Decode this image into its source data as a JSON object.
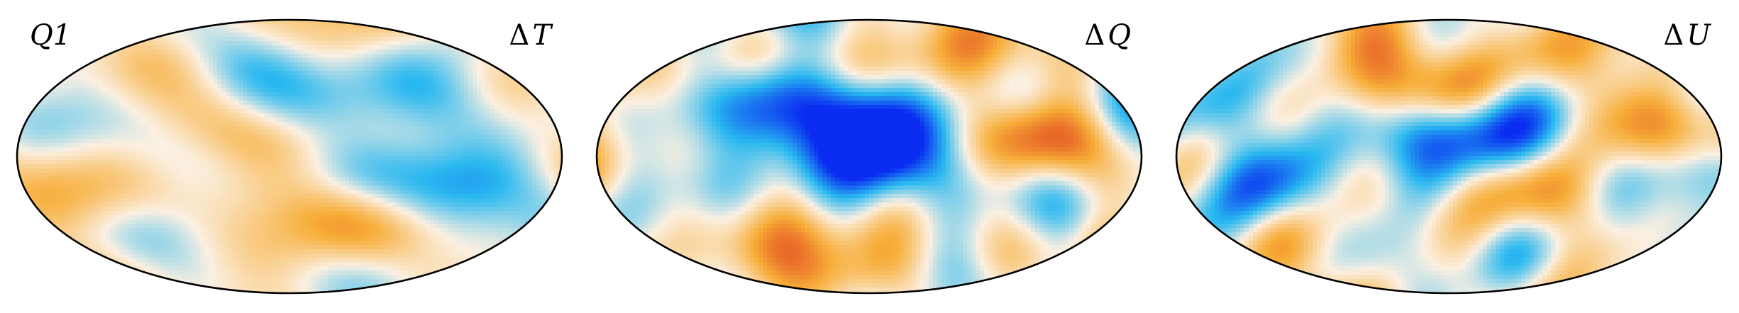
{
  "figure": {
    "projection": "Mollweide",
    "colormap": {
      "negative_strong": "#0a2cf0",
      "negative_mid": "#29b8f0",
      "neutral": "#fbf0e2",
      "positive_mid": "#f7ad38",
      "positive_strong": "#e0431f"
    },
    "outline_color": "#000000",
    "background": "#ffffff"
  },
  "panels": [
    {
      "id": "dT",
      "left_label": "Q1",
      "right_label_delta": "Δ",
      "right_label_symbol": "T",
      "field": {
        "seed": 11,
        "amplitude": 0.5,
        "features": [
          {
            "lon": -60,
            "lat": 20,
            "sign": 1,
            "strength": 0.5
          },
          {
            "lon": 20,
            "lat": 35,
            "sign": -1,
            "strength": 0.55
          },
          {
            "lon": 120,
            "lat": -20,
            "sign": -1,
            "strength": 0.6
          },
          {
            "lon": -110,
            "lat": -30,
            "sign": 1,
            "strength": 0.35
          },
          {
            "lon": 60,
            "lat": -40,
            "sign": 1,
            "strength": 0.4
          }
        ]
      }
    },
    {
      "id": "dQ",
      "left_label": "",
      "right_label_delta": "Δ",
      "right_label_symbol": "Q",
      "field": {
        "seed": 29,
        "amplitude": 0.75,
        "features": [
          {
            "lon": 0,
            "lat": 0,
            "sign": -1,
            "strength": 1.2
          },
          {
            "lon": 20,
            "lat": 30,
            "sign": -1,
            "strength": 0.8
          },
          {
            "lon": -40,
            "lat": -40,
            "sign": 1,
            "strength": 0.7
          },
          {
            "lon": 120,
            "lat": 15,
            "sign": 1,
            "strength": 0.6
          },
          {
            "lon": -120,
            "lat": 30,
            "sign": -1,
            "strength": 0.5
          }
        ]
      }
    },
    {
      "id": "dU",
      "left_label": "",
      "right_label_delta": "Δ",
      "right_label_symbol": "U",
      "field": {
        "seed": 47,
        "amplitude": 0.75,
        "features": [
          {
            "lon": 10,
            "lat": 15,
            "sign": -1,
            "strength": 0.9
          },
          {
            "lon": -20,
            "lat": 45,
            "sign": 1,
            "strength": 0.6
          },
          {
            "lon": 160,
            "lat": 15,
            "sign": 1,
            "strength": 0.8
          },
          {
            "lon": 165,
            "lat": -10,
            "sign": -1,
            "strength": 0.7
          },
          {
            "lon": -130,
            "lat": -20,
            "sign": -1,
            "strength": 0.5
          },
          {
            "lon": 60,
            "lat": -30,
            "sign": 1,
            "strength": 0.5
          }
        ]
      }
    }
  ]
}
